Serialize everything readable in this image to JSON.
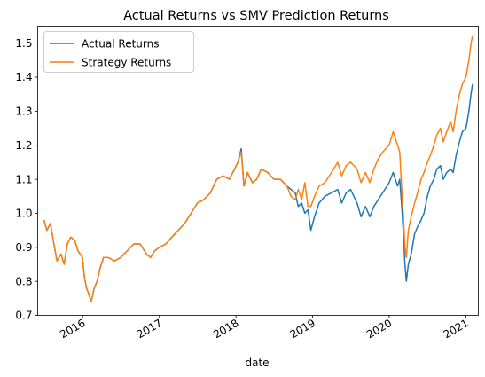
{
  "chart_data": {
    "type": "line",
    "title": "Actual Returns vs SMV Prediction Returns",
    "xlabel": "date",
    "ylabel": "",
    "xlim": [
      "2015-06-01",
      "2021-03-01"
    ],
    "ylim": [
      0.7,
      1.55
    ],
    "grid": false,
    "legend_position": "top-left",
    "x_ticks": [
      {
        "date": "2016-01-01",
        "label": "2016"
      },
      {
        "date": "2017-01-01",
        "label": "2017"
      },
      {
        "date": "2018-01-01",
        "label": "2018"
      },
      {
        "date": "2019-01-01",
        "label": "2019"
      },
      {
        "date": "2020-01-01",
        "label": "2020"
      },
      {
        "date": "2021-01-01",
        "label": "2021"
      }
    ],
    "y_ticks": [
      {
        "value": 0.7,
        "label": "0.7"
      },
      {
        "value": 0.8,
        "label": "0.8"
      },
      {
        "value": 0.9,
        "label": "0.9"
      },
      {
        "value": 1.0,
        "label": "1.0"
      },
      {
        "value": 1.1,
        "label": "1.1"
      },
      {
        "value": 1.2,
        "label": "1.2"
      },
      {
        "value": 1.3,
        "label": "1.3"
      },
      {
        "value": 1.4,
        "label": "1.4"
      },
      {
        "value": 1.5,
        "label": "1.5"
      }
    ],
    "series": [
      {
        "name": "Actual Returns",
        "color": "#1f77b4",
        "points": [
          [
            "2015-07-01",
            0.98
          ],
          [
            "2015-07-15",
            0.95
          ],
          [
            "2015-08-01",
            0.97
          ],
          [
            "2015-08-20",
            0.9
          ],
          [
            "2015-09-01",
            0.86
          ],
          [
            "2015-09-20",
            0.88
          ],
          [
            "2015-10-05",
            0.85
          ],
          [
            "2015-10-20",
            0.91
          ],
          [
            "2015-11-05",
            0.93
          ],
          [
            "2015-11-25",
            0.92
          ],
          [
            "2015-12-10",
            0.89
          ],
          [
            "2015-12-31",
            0.87
          ],
          [
            "2016-01-10",
            0.81
          ],
          [
            "2016-01-20",
            0.78
          ],
          [
            "2016-02-01",
            0.76
          ],
          [
            "2016-02-11",
            0.74
          ],
          [
            "2016-02-25",
            0.78
          ],
          [
            "2016-03-10",
            0.8
          ],
          [
            "2016-03-25",
            0.84
          ],
          [
            "2016-04-10",
            0.87
          ],
          [
            "2016-05-01",
            0.87
          ],
          [
            "2016-06-01",
            0.86
          ],
          [
            "2016-07-01",
            0.87
          ],
          [
            "2016-08-01",
            0.89
          ],
          [
            "2016-09-01",
            0.91
          ],
          [
            "2016-10-01",
            0.91
          ],
          [
            "2016-11-01",
            0.88
          ],
          [
            "2016-11-20",
            0.87
          ],
          [
            "2016-12-10",
            0.89
          ],
          [
            "2017-01-01",
            0.9
          ],
          [
            "2017-02-01",
            0.91
          ],
          [
            "2017-03-01",
            0.93
          ],
          [
            "2017-04-01",
            0.95
          ],
          [
            "2017-05-01",
            0.97
          ],
          [
            "2017-06-01",
            1.0
          ],
          [
            "2017-07-01",
            1.03
          ],
          [
            "2017-08-01",
            1.04
          ],
          [
            "2017-09-01",
            1.06
          ],
          [
            "2017-10-01",
            1.1
          ],
          [
            "2017-11-01",
            1.11
          ],
          [
            "2017-12-01",
            1.1
          ],
          [
            "2018-01-10",
            1.15
          ],
          [
            "2018-01-26",
            1.19
          ],
          [
            "2018-02-08",
            1.08
          ],
          [
            "2018-02-25",
            1.12
          ],
          [
            "2018-03-20",
            1.09
          ],
          [
            "2018-04-10",
            1.1
          ],
          [
            "2018-05-01",
            1.13
          ],
          [
            "2018-06-01",
            1.12
          ],
          [
            "2018-07-01",
            1.1
          ],
          [
            "2018-08-01",
            1.1
          ],
          [
            "2018-09-01",
            1.08
          ],
          [
            "2018-09-20",
            1.07
          ],
          [
            "2018-10-10",
            1.06
          ],
          [
            "2018-10-25",
            1.02
          ],
          [
            "2018-11-10",
            1.03
          ],
          [
            "2018-11-25",
            1.0
          ],
          [
            "2018-12-10",
            1.01
          ],
          [
            "2018-12-24",
            0.95
          ],
          [
            "2019-01-10",
            0.99
          ],
          [
            "2019-02-01",
            1.03
          ],
          [
            "2019-03-01",
            1.05
          ],
          [
            "2019-04-01",
            1.06
          ],
          [
            "2019-05-01",
            1.07
          ],
          [
            "2019-05-20",
            1.03
          ],
          [
            "2019-06-10",
            1.06
          ],
          [
            "2019-07-01",
            1.07
          ],
          [
            "2019-08-01",
            1.03
          ],
          [
            "2019-08-20",
            0.99
          ],
          [
            "2019-09-10",
            1.02
          ],
          [
            "2019-10-01",
            0.99
          ],
          [
            "2019-10-20",
            1.02
          ],
          [
            "2019-11-10",
            1.04
          ],
          [
            "2019-12-01",
            1.06
          ],
          [
            "2020-01-01",
            1.09
          ],
          [
            "2020-01-20",
            1.12
          ],
          [
            "2020-02-10",
            1.08
          ],
          [
            "2020-02-20",
            1.1
          ],
          [
            "2020-03-01",
            1.02
          ],
          [
            "2020-03-10",
            0.93
          ],
          [
            "2020-03-16",
            0.85
          ],
          [
            "2020-03-23",
            0.8
          ],
          [
            "2020-04-01",
            0.85
          ],
          [
            "2020-04-15",
            0.88
          ],
          [
            "2020-05-01",
            0.94
          ],
          [
            "2020-05-15",
            0.96
          ],
          [
            "2020-06-01",
            0.98
          ],
          [
            "2020-06-15",
            1.0
          ],
          [
            "2020-07-01",
            1.05
          ],
          [
            "2020-07-15",
            1.08
          ],
          [
            "2020-08-01",
            1.1
          ],
          [
            "2020-08-15",
            1.13
          ],
          [
            "2020-09-01",
            1.14
          ],
          [
            "2020-09-15",
            1.1
          ],
          [
            "2020-10-01",
            1.12
          ],
          [
            "2020-10-20",
            1.13
          ],
          [
            "2020-11-01",
            1.12
          ],
          [
            "2020-11-15",
            1.17
          ],
          [
            "2020-12-01",
            1.21
          ],
          [
            "2020-12-15",
            1.24
          ],
          [
            "2021-01-01",
            1.25
          ],
          [
            "2021-01-15",
            1.3
          ],
          [
            "2021-01-25",
            1.35
          ],
          [
            "2021-02-01",
            1.38
          ]
        ]
      },
      {
        "name": "Strategy Returns",
        "color": "#ff7f0e",
        "points": [
          [
            "2015-07-01",
            0.98
          ],
          [
            "2015-07-15",
            0.95
          ],
          [
            "2015-08-01",
            0.97
          ],
          [
            "2015-08-20",
            0.9
          ],
          [
            "2015-09-01",
            0.86
          ],
          [
            "2015-09-20",
            0.88
          ],
          [
            "2015-10-05",
            0.85
          ],
          [
            "2015-10-20",
            0.91
          ],
          [
            "2015-11-05",
            0.93
          ],
          [
            "2015-11-25",
            0.92
          ],
          [
            "2015-12-10",
            0.89
          ],
          [
            "2015-12-31",
            0.87
          ],
          [
            "2016-01-10",
            0.81
          ],
          [
            "2016-01-20",
            0.78
          ],
          [
            "2016-02-01",
            0.76
          ],
          [
            "2016-02-11",
            0.74
          ],
          [
            "2016-02-25",
            0.78
          ],
          [
            "2016-03-10",
            0.8
          ],
          [
            "2016-03-25",
            0.84
          ],
          [
            "2016-04-10",
            0.87
          ],
          [
            "2016-05-01",
            0.87
          ],
          [
            "2016-06-01",
            0.86
          ],
          [
            "2016-07-01",
            0.87
          ],
          [
            "2016-08-01",
            0.89
          ],
          [
            "2016-09-01",
            0.91
          ],
          [
            "2016-10-01",
            0.91
          ],
          [
            "2016-11-01",
            0.88
          ],
          [
            "2016-11-20",
            0.87
          ],
          [
            "2016-12-10",
            0.89
          ],
          [
            "2017-01-01",
            0.9
          ],
          [
            "2017-02-01",
            0.91
          ],
          [
            "2017-03-01",
            0.93
          ],
          [
            "2017-04-01",
            0.95
          ],
          [
            "2017-05-01",
            0.97
          ],
          [
            "2017-06-01",
            1.0
          ],
          [
            "2017-07-01",
            1.03
          ],
          [
            "2017-08-01",
            1.04
          ],
          [
            "2017-09-01",
            1.06
          ],
          [
            "2017-10-01",
            1.1
          ],
          [
            "2017-11-01",
            1.11
          ],
          [
            "2017-12-01",
            1.1
          ],
          [
            "2018-01-10",
            1.15
          ],
          [
            "2018-01-26",
            1.18
          ],
          [
            "2018-02-08",
            1.08
          ],
          [
            "2018-02-25",
            1.12
          ],
          [
            "2018-03-20",
            1.09
          ],
          [
            "2018-04-10",
            1.1
          ],
          [
            "2018-05-01",
            1.13
          ],
          [
            "2018-06-01",
            1.12
          ],
          [
            "2018-07-01",
            1.1
          ],
          [
            "2018-08-01",
            1.1
          ],
          [
            "2018-09-01",
            1.08
          ],
          [
            "2018-09-20",
            1.05
          ],
          [
            "2018-10-10",
            1.04
          ],
          [
            "2018-10-25",
            1.07
          ],
          [
            "2018-11-10",
            1.04
          ],
          [
            "2018-11-25",
            1.09
          ],
          [
            "2018-12-10",
            1.02
          ],
          [
            "2018-12-24",
            1.02
          ],
          [
            "2019-01-10",
            1.05
          ],
          [
            "2019-02-01",
            1.08
          ],
          [
            "2019-03-01",
            1.09
          ],
          [
            "2019-04-01",
            1.12
          ],
          [
            "2019-05-01",
            1.15
          ],
          [
            "2019-05-20",
            1.11
          ],
          [
            "2019-06-10",
            1.14
          ],
          [
            "2019-07-01",
            1.15
          ],
          [
            "2019-08-01",
            1.13
          ],
          [
            "2019-08-20",
            1.09
          ],
          [
            "2019-09-10",
            1.12
          ],
          [
            "2019-10-01",
            1.09
          ],
          [
            "2019-10-20",
            1.13
          ],
          [
            "2019-11-10",
            1.16
          ],
          [
            "2019-12-01",
            1.18
          ],
          [
            "2020-01-01",
            1.2
          ],
          [
            "2020-01-20",
            1.24
          ],
          [
            "2020-02-10",
            1.2
          ],
          [
            "2020-02-20",
            1.18
          ],
          [
            "2020-03-01",
            1.07
          ],
          [
            "2020-03-10",
            0.98
          ],
          [
            "2020-03-16",
            0.9
          ],
          [
            "2020-03-23",
            0.87
          ],
          [
            "2020-04-01",
            0.95
          ],
          [
            "2020-04-15",
            0.99
          ],
          [
            "2020-05-01",
            1.03
          ],
          [
            "2020-05-15",
            1.06
          ],
          [
            "2020-06-01",
            1.1
          ],
          [
            "2020-06-15",
            1.12
          ],
          [
            "2020-07-01",
            1.15
          ],
          [
            "2020-07-15",
            1.17
          ],
          [
            "2020-08-01",
            1.2
          ],
          [
            "2020-08-15",
            1.23
          ],
          [
            "2020-09-01",
            1.25
          ],
          [
            "2020-09-15",
            1.21
          ],
          [
            "2020-10-01",
            1.24
          ],
          [
            "2020-10-20",
            1.27
          ],
          [
            "2020-11-01",
            1.24
          ],
          [
            "2020-11-15",
            1.3
          ],
          [
            "2020-12-01",
            1.35
          ],
          [
            "2020-12-15",
            1.38
          ],
          [
            "2021-01-01",
            1.4
          ],
          [
            "2021-01-15",
            1.45
          ],
          [
            "2021-01-25",
            1.5
          ],
          [
            "2021-02-01",
            1.52
          ]
        ]
      }
    ]
  }
}
